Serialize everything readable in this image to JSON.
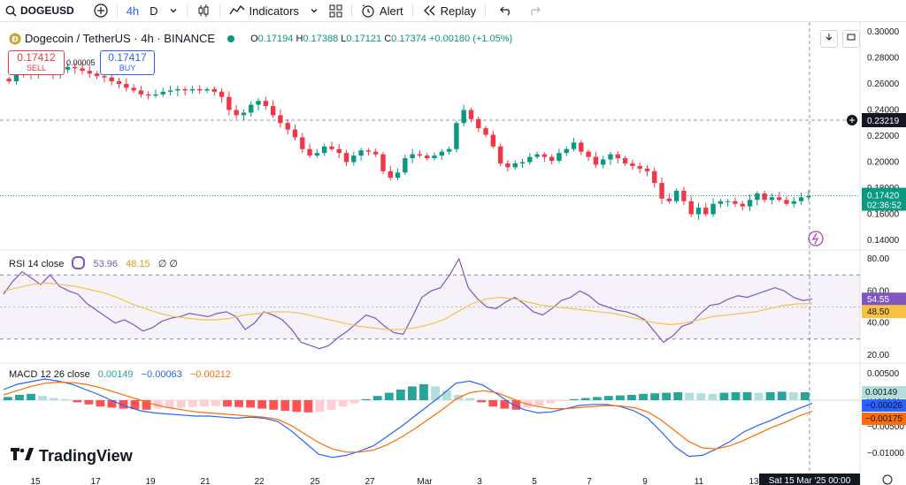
{
  "toolbar": {
    "symbol": "DOGEUSD",
    "interval": "4h",
    "interval_alt": "D",
    "indicators": "Indicators",
    "alert": "Alert",
    "replay": "Replay"
  },
  "legend": {
    "title": "Dogecoin / TetherUS · 4h · BINANCE",
    "open_label": "O",
    "open": "0.17194",
    "high_label": "H",
    "high": "0.17388",
    "low_label": "L",
    "low": "0.17121",
    "close_label": "C",
    "close": "0.17374",
    "change": "+0.00180 (+1.05%)",
    "up_color": "#089981",
    "down_color": "#f23645"
  },
  "trade": {
    "sell_price": "0.17412",
    "sell_label": "SELL",
    "buy_price": "0.17417",
    "buy_label": "BUY",
    "spread": "0.00005"
  },
  "price_axis": {
    "ticks": [
      "0.30000",
      "0.28000",
      "0.26000",
      "0.24000",
      "0.22000",
      "0.20000",
      "0.18000",
      "0.16000",
      "0.14000"
    ],
    "crosshair_price": "0.23219",
    "last_price": "0.17420",
    "countdown": "02:36:52"
  },
  "rsi": {
    "label": "RSI 14 close",
    "value": "53.96",
    "ma_value": "48.15",
    "extra": "∅ ∅",
    "ticks": [
      "80.00",
      "60.00",
      "40.00",
      "20.00"
    ],
    "tag_rsi": "54.55",
    "tag_ma": "48.50",
    "upper_band": 70,
    "lower_band": 30,
    "rsi_color": "#7e57c2",
    "ma_color": "#f7c244"
  },
  "macd": {
    "label": "MACD 12 26 close",
    "hist": "0.00149",
    "macd_value": "−0.00063",
    "signal_value": "−0.00212",
    "ticks": [
      "0.00500",
      "0.00000",
      "−0.00500",
      "−0.01000"
    ],
    "tag_hist": "0.00149",
    "tag_macd": "−0.00026",
    "tag_signal": "−0.00175",
    "macd_color": "#2962ff",
    "signal_color": "#ff6d00"
  },
  "time_axis": {
    "ticks": [
      "15",
      "17",
      "19",
      "21",
      "22",
      "25",
      "27",
      "Mar",
      "3",
      "5",
      "7",
      "9",
      "11",
      "13"
    ],
    "crosshair_time": "Sat 15 Mar '25   00:00"
  },
  "branding": "TradingView",
  "chart_data": [
    {
      "type": "candlestick",
      "title": "Dogecoin / TetherUS · 4h · BINANCE",
      "ylim": [
        0.14,
        0.3
      ],
      "x_ticks": [
        "15",
        "17",
        "19",
        "21",
        "22",
        "25",
        "27",
        "Mar",
        "3",
        "5",
        "7",
        "9",
        "11",
        "13"
      ],
      "crosshair_price": 0.23219,
      "last_price": 0.1742,
      "ohlc_last": {
        "open": 0.17194,
        "high": 0.17388,
        "low": 0.17121,
        "close": 0.17374
      },
      "close_path": [
        0.262,
        0.268,
        0.27,
        0.268,
        0.272,
        0.27,
        0.268,
        0.271,
        0.273,
        0.272,
        0.27,
        0.268,
        0.266,
        0.265,
        0.262,
        0.26,
        0.257,
        0.255,
        0.252,
        0.251,
        0.252,
        0.254,
        0.255,
        0.256,
        0.255,
        0.256,
        0.255,
        0.256,
        0.254,
        0.25,
        0.24,
        0.236,
        0.238,
        0.244,
        0.247,
        0.243,
        0.236,
        0.23,
        0.225,
        0.219,
        0.21,
        0.205,
        0.207,
        0.212,
        0.21,
        0.207,
        0.2,
        0.205,
        0.209,
        0.208,
        0.206,
        0.193,
        0.188,
        0.192,
        0.203,
        0.206,
        0.205,
        0.203,
        0.205,
        0.208,
        0.21,
        0.23,
        0.24,
        0.233,
        0.226,
        0.221,
        0.212,
        0.199,
        0.196,
        0.199,
        0.2,
        0.204,
        0.206,
        0.204,
        0.201,
        0.207,
        0.21,
        0.215,
        0.208,
        0.204,
        0.198,
        0.202,
        0.206,
        0.203,
        0.199,
        0.197,
        0.195,
        0.193,
        0.184,
        0.172,
        0.17,
        0.178,
        0.17,
        0.16,
        0.165,
        0.16,
        0.168,
        0.17,
        0.17,
        0.168,
        0.166,
        0.171,
        0.176,
        0.171,
        0.173,
        0.171,
        0.168,
        0.17,
        0.173,
        0.174
      ]
    },
    {
      "type": "line",
      "title": "RSI 14 close",
      "ylim": [
        0,
        100
      ],
      "series": [
        {
          "name": "RSI",
          "values": [
            58,
            66,
            72,
            68,
            64,
            70,
            63,
            60,
            58,
            52,
            48,
            44,
            40,
            42,
            39,
            35,
            37,
            41,
            43,
            44,
            46,
            45,
            44,
            46,
            47,
            44,
            36,
            40,
            47,
            45,
            42,
            36,
            28,
            26,
            24,
            26,
            31,
            35,
            40,
            45,
            43,
            38,
            34,
            33,
            44,
            56,
            60,
            62,
            70,
            80,
            62,
            55,
            50,
            49,
            53,
            56,
            52,
            47,
            45,
            49,
            54,
            56,
            60,
            57,
            52,
            50,
            48,
            47,
            45,
            42,
            35,
            28,
            32,
            38,
            40,
            46,
            51,
            52,
            55,
            57,
            56,
            58,
            60,
            62,
            60,
            56,
            54,
            55
          ]
        },
        {
          "name": "MA",
          "values": [
            60,
            62,
            64,
            65,
            64,
            63,
            61,
            59,
            56,
            52,
            49,
            46,
            44,
            43,
            42,
            42,
            43,
            45,
            46,
            47,
            47,
            46,
            44,
            42,
            40,
            38,
            37,
            36,
            36,
            37,
            39,
            42,
            47,
            52,
            55,
            56,
            55,
            53,
            51,
            50,
            49,
            48,
            47,
            46,
            44,
            42,
            40,
            39,
            40,
            42,
            44,
            45,
            46,
            47,
            49,
            51,
            52,
            52
          ]
        }
      ],
      "levels": [
        70,
        30
      ]
    },
    {
      "type": "bar",
      "title": "MACD 12 26 close",
      "ylim": [
        -0.012,
        0.005
      ],
      "series": [
        {
          "name": "Histogram",
          "values": [
            0.0006,
            0.001,
            0.0012,
            0.0008,
            0.0004,
            0.0002,
            -0.0004,
            -0.0008,
            -0.0012,
            -0.0014,
            -0.0016,
            -0.0017,
            -0.0018,
            -0.0016,
            -0.0015,
            -0.0014,
            -0.0013,
            -0.0012,
            -0.0011,
            -0.0012,
            -0.0013,
            -0.0014,
            -0.0016,
            -0.0018,
            -0.002,
            -0.0022,
            -0.0023,
            -0.0022,
            -0.0018,
            -0.0012,
            -0.0006,
            0.0002,
            0.0008,
            0.0014,
            0.002,
            0.0026,
            0.003,
            0.0026,
            0.0018,
            0.001,
            0.0004,
            -0.0004,
            -0.0012,
            -0.0016,
            -0.0018,
            -0.0014,
            -0.001,
            -0.0006,
            -0.0002,
            0.0002,
            0.0004,
            0.0006,
            0.0008,
            0.0009,
            0.001,
            0.0012,
            0.0013,
            0.0014,
            0.0015,
            0.0014,
            0.0013,
            0.0012,
            0.0014,
            0.0015,
            0.0015,
            0.0014,
            0.0015,
            0.0016,
            0.0015,
            0.0015
          ]
        },
        {
          "name": "MACD",
          "values": [
            0.002,
            0.003,
            0.0035,
            0.004,
            0.0036,
            0.003,
            0.002,
            0.001,
            -0.0002,
            -0.0012,
            -0.002,
            -0.0024,
            -0.0026,
            -0.0028,
            -0.003,
            -0.003,
            -0.0032,
            -0.0034,
            -0.0032,
            -0.0034,
            -0.004,
            -0.0058,
            -0.008,
            -0.0102,
            -0.0108,
            -0.0104,
            -0.0096,
            -0.0086,
            -0.0068,
            -0.005,
            -0.003,
            -0.001,
            0.001,
            0.0032,
            0.0036,
            0.0028,
            0.0012,
            -0.0006,
            -0.0018,
            -0.0024,
            -0.0022,
            -0.0016,
            -0.001,
            -0.0008,
            -0.0008,
            -0.0012,
            -0.002,
            -0.0034,
            -0.006,
            -0.0088,
            -0.0106,
            -0.0104,
            -0.0092,
            -0.0078,
            -0.006,
            -0.0048,
            -0.0038,
            -0.0026,
            -0.0016,
            -0.0006
          ]
        },
        {
          "name": "Signal",
          "values": [
            0.001,
            0.0018,
            0.0026,
            0.0032,
            0.0034,
            0.0033,
            0.003,
            0.0024,
            0.0016,
            0.0008,
            0.0,
            -0.0008,
            -0.0014,
            -0.0018,
            -0.0022,
            -0.0024,
            -0.0026,
            -0.0028,
            -0.003,
            -0.0032,
            -0.0036,
            -0.0048,
            -0.0064,
            -0.008,
            -0.0092,
            -0.0098,
            -0.0098,
            -0.0094,
            -0.0084,
            -0.007,
            -0.0054,
            -0.0036,
            -0.0018,
            0.0002,
            0.0014,
            0.0018,
            0.0014,
            0.0004,
            -0.0006,
            -0.0012,
            -0.0016,
            -0.0016,
            -0.0014,
            -0.0012,
            -0.001,
            -0.0011,
            -0.0014,
            -0.0022,
            -0.0038,
            -0.0058,
            -0.0078,
            -0.009,
            -0.0092,
            -0.0086,
            -0.0076,
            -0.0064,
            -0.0052,
            -0.0042,
            -0.003,
            -0.0021
          ]
        }
      ]
    }
  ]
}
